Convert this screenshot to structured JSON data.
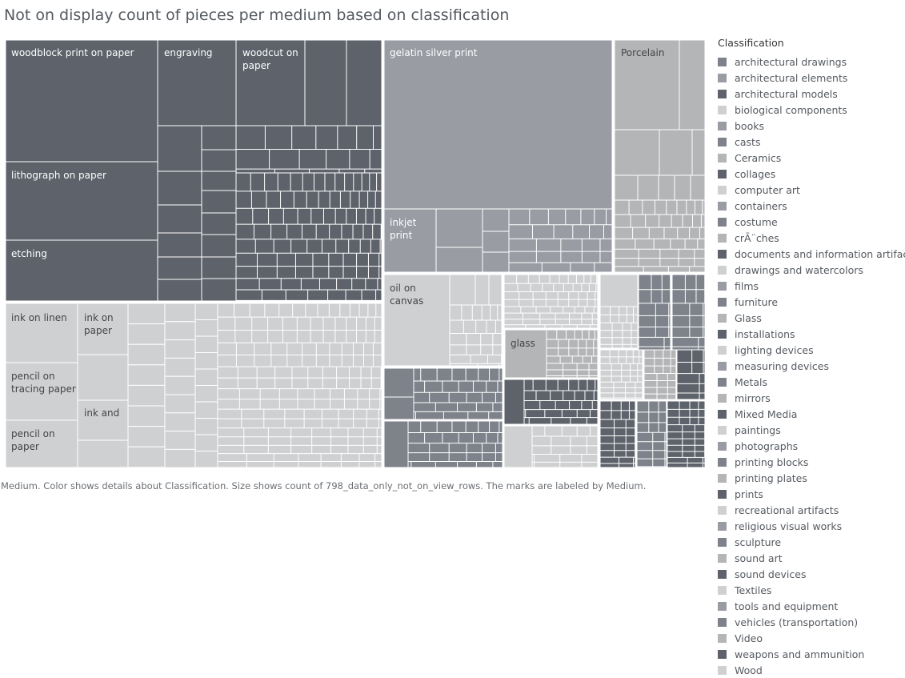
{
  "title": "Not on display count of pieces per medium based on classification",
  "caption": "Medium.  Color shows details about Classification.  Size shows count of 798_data_only_not_on_view_rows.  The marks are labeled by Medium.",
  "colors": {
    "dark": "#5d626b",
    "mid": "#999da3",
    "light": "#cfd0d2",
    "ceramics": "#b3b5b7",
    "steel": "#7d828b"
  },
  "legend": {
    "title": "Classification",
    "items": [
      {
        "label": "architectural drawings",
        "color": "#7d828b"
      },
      {
        "label": "architectural elements",
        "color": "#999da3"
      },
      {
        "label": "architectural models",
        "color": "#5d626b"
      },
      {
        "label": "biological components",
        "color": "#cfd0d2"
      },
      {
        "label": "books",
        "color": "#999da3"
      },
      {
        "label": "casts",
        "color": "#7d828b"
      },
      {
        "label": "Ceramics",
        "color": "#b3b5b7"
      },
      {
        "label": "collages",
        "color": "#5d626b"
      },
      {
        "label": "computer art",
        "color": "#cfd0d2"
      },
      {
        "label": "containers",
        "color": "#999da3"
      },
      {
        "label": "costume",
        "color": "#7d828b"
      },
      {
        "label": "crÃ¨ches",
        "color": "#b3b5b7"
      },
      {
        "label": "documents and information artifacts",
        "color": "#5d626b"
      },
      {
        "label": "drawings and watercolors",
        "color": "#cfd0d2"
      },
      {
        "label": "films",
        "color": "#999da3"
      },
      {
        "label": "furniture",
        "color": "#7d828b"
      },
      {
        "label": "Glass",
        "color": "#b3b5b7"
      },
      {
        "label": "installations",
        "color": "#5d626b"
      },
      {
        "label": "lighting devices",
        "color": "#cfd0d2"
      },
      {
        "label": "measuring devices",
        "color": "#999da3"
      },
      {
        "label": "Metals",
        "color": "#7d828b"
      },
      {
        "label": "mirrors",
        "color": "#b3b5b7"
      },
      {
        "label": "Mixed Media",
        "color": "#5d626b"
      },
      {
        "label": "paintings",
        "color": "#cfd0d2"
      },
      {
        "label": "photographs",
        "color": "#999da3"
      },
      {
        "label": "printing blocks",
        "color": "#7d828b"
      },
      {
        "label": "printing plates",
        "color": "#b3b5b7"
      },
      {
        "label": "prints",
        "color": "#5d626b"
      },
      {
        "label": "recreational artifacts",
        "color": "#cfd0d2"
      },
      {
        "label": "religious visual works",
        "color": "#999da3"
      },
      {
        "label": "sculpture",
        "color": "#7d828b"
      },
      {
        "label": "sound art",
        "color": "#b3b5b7"
      },
      {
        "label": "sound devices",
        "color": "#5d626b"
      },
      {
        "label": "Textiles",
        "color": "#cfd0d2"
      },
      {
        "label": "tools and equipment",
        "color": "#999da3"
      },
      {
        "label": "vehicles (transportation)",
        "color": "#7d828b"
      },
      {
        "label": "Video",
        "color": "#b3b5b7"
      },
      {
        "label": "weapons and ammunition",
        "color": "#5d626b"
      },
      {
        "label": "Wood",
        "color": "#cfd0d2"
      }
    ]
  },
  "chart_data": {
    "type": "treemap",
    "title": "Not on display count of pieces per medium based on classification",
    "size_measure": "count of 798_data_only_not_on_view_rows",
    "color_field": "Classification",
    "label_field": "Medium",
    "groups": [
      {
        "classification": "prints",
        "labeled_marks": [
          "woodblock print on paper",
          "lithograph on paper",
          "etching",
          "engraving",
          "woodcut on paper"
        ]
      },
      {
        "classification": "photographs",
        "labeled_marks": [
          "gelatin silver print",
          "inkjet print"
        ]
      },
      {
        "classification": "Ceramics",
        "labeled_marks": [
          "Porcelain"
        ]
      },
      {
        "classification": "drawings and watercolors",
        "labeled_marks": [
          "ink on linen",
          "ink on paper",
          "pencil on tracing paper",
          "pencil on paper",
          "ink and"
        ]
      },
      {
        "classification": "paintings",
        "labeled_marks": [
          "oil on canvas"
        ]
      },
      {
        "classification": "Glass",
        "labeled_marks": [
          "glass"
        ]
      }
    ]
  }
}
